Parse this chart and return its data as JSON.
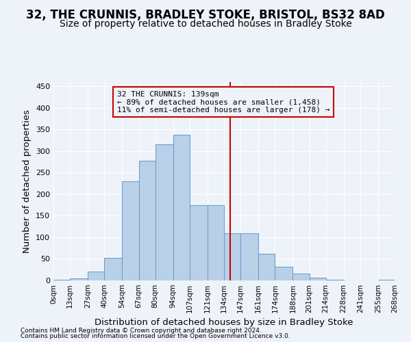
{
  "title": "32, THE CRUNNIS, BRADLEY STOKE, BRISTOL, BS32 8AD",
  "subtitle": "Size of property relative to detached houses in Bradley Stoke",
  "xlabel": "Distribution of detached houses by size in Bradley Stoke",
  "ylabel": "Number of detached properties",
  "bin_labels": [
    "0sqm",
    "13sqm",
    "27sqm",
    "40sqm",
    "54sqm",
    "67sqm",
    "80sqm",
    "94sqm",
    "107sqm",
    "121sqm",
    "134sqm",
    "147sqm",
    "161sqm",
    "174sqm",
    "188sqm",
    "201sqm",
    "214sqm",
    "228sqm",
    "241sqm",
    "255sqm",
    "268sqm"
  ],
  "bin_edges": [
    0,
    13,
    27,
    40,
    54,
    67,
    80,
    94,
    107,
    121,
    134,
    147,
    161,
    174,
    188,
    201,
    214,
    228,
    241,
    255,
    268
  ],
  "bar_heights": [
    2,
    5,
    20,
    53,
    230,
    278,
    315,
    338,
    174,
    174,
    109,
    109,
    62,
    32,
    16,
    7,
    2,
    0,
    0,
    2
  ],
  "bar_color": "#b8d0e8",
  "bar_edge_color": "#6699cc",
  "property_size": 139,
  "vline_color": "#cc0000",
  "annotation_line1": "32 THE CRUNNIS: 139sqm",
  "annotation_line2": "← 89% of detached houses are smaller (1,458)",
  "annotation_line3": "11% of semi-detached houses are larger (178) →",
  "ylim": [
    0,
    460
  ],
  "yticks": [
    0,
    50,
    100,
    150,
    200,
    250,
    300,
    350,
    400,
    450
  ],
  "footer1": "Contains HM Land Registry data © Crown copyright and database right 2024.",
  "footer2": "Contains public sector information licensed under the Open Government Licence v3.0.",
  "background_color": "#eef2f9",
  "grid_color": "#ffffff",
  "title_fontsize": 12,
  "subtitle_fontsize": 10,
  "axis_label_fontsize": 9.5,
  "annotation_fontsize": 8,
  "footer_fontsize": 6.5
}
